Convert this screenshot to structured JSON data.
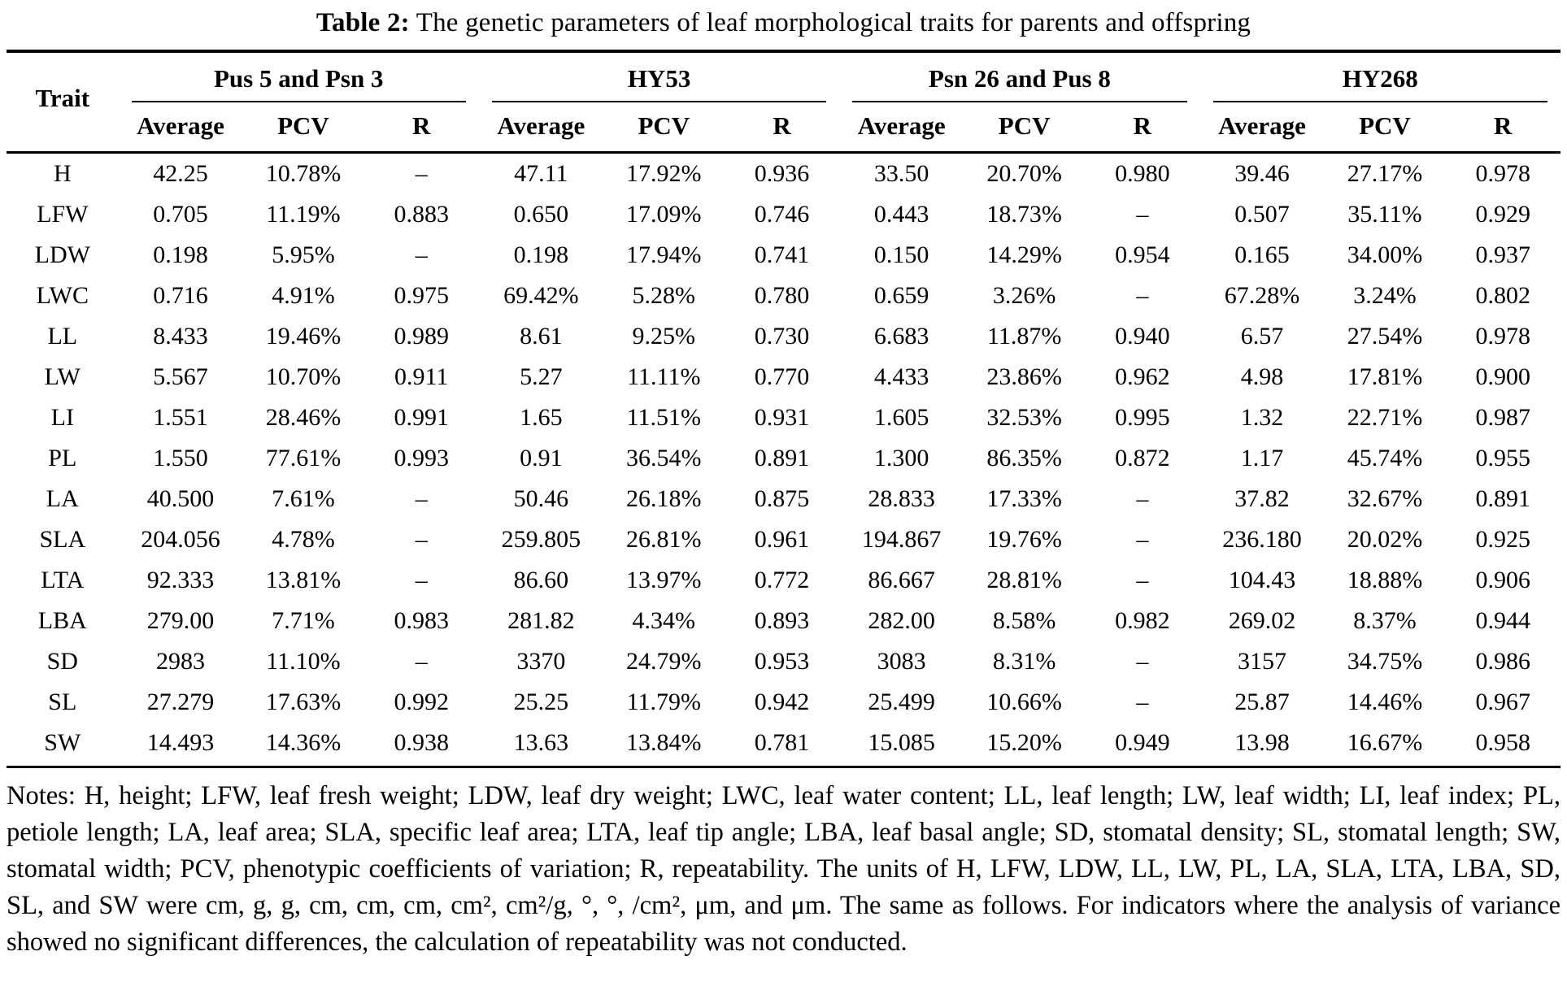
{
  "title": {
    "label": "Table 2:",
    "text": "The genetic parameters of leaf morphological traits for parents and offspring"
  },
  "table": {
    "trait_header": "Trait",
    "groups": [
      "Pus 5 and Psn 3",
      "HY53",
      "Psn 26 and Pus 8",
      "HY268"
    ],
    "sub_headers": [
      "Average",
      "PCV",
      "R"
    ],
    "rows": [
      {
        "trait": "H",
        "cells": [
          "42.25",
          "10.78%",
          "–",
          "47.11",
          "17.92%",
          "0.936",
          "33.50",
          "20.70%",
          "0.980",
          "39.46",
          "27.17%",
          "0.978"
        ]
      },
      {
        "trait": "LFW",
        "cells": [
          "0.705",
          "11.19%",
          "0.883",
          "0.650",
          "17.09%",
          "0.746",
          "0.443",
          "18.73%",
          "–",
          "0.507",
          "35.11%",
          "0.929"
        ]
      },
      {
        "trait": "LDW",
        "cells": [
          "0.198",
          "5.95%",
          "–",
          "0.198",
          "17.94%",
          "0.741",
          "0.150",
          "14.29%",
          "0.954",
          "0.165",
          "34.00%",
          "0.937"
        ]
      },
      {
        "trait": "LWC",
        "cells": [
          "0.716",
          "4.91%",
          "0.975",
          "69.42%",
          "5.28%",
          "0.780",
          "0.659",
          "3.26%",
          "–",
          "67.28%",
          "3.24%",
          "0.802"
        ]
      },
      {
        "trait": "LL",
        "cells": [
          "8.433",
          "19.46%",
          "0.989",
          "8.61",
          "9.25%",
          "0.730",
          "6.683",
          "11.87%",
          "0.940",
          "6.57",
          "27.54%",
          "0.978"
        ]
      },
      {
        "trait": "LW",
        "cells": [
          "5.567",
          "10.70%",
          "0.911",
          "5.27",
          "11.11%",
          "0.770",
          "4.433",
          "23.86%",
          "0.962",
          "4.98",
          "17.81%",
          "0.900"
        ]
      },
      {
        "trait": "LI",
        "cells": [
          "1.551",
          "28.46%",
          "0.991",
          "1.65",
          "11.51%",
          "0.931",
          "1.605",
          "32.53%",
          "0.995",
          "1.32",
          "22.71%",
          "0.987"
        ]
      },
      {
        "trait": "PL",
        "cells": [
          "1.550",
          "77.61%",
          "0.993",
          "0.91",
          "36.54%",
          "0.891",
          "1.300",
          "86.35%",
          "0.872",
          "1.17",
          "45.74%",
          "0.955"
        ]
      },
      {
        "trait": "LA",
        "cells": [
          "40.500",
          "7.61%",
          "–",
          "50.46",
          "26.18%",
          "0.875",
          "28.833",
          "17.33%",
          "–",
          "37.82",
          "32.67%",
          "0.891"
        ]
      },
      {
        "trait": "SLA",
        "cells": [
          "204.056",
          "4.78%",
          "–",
          "259.805",
          "26.81%",
          "0.961",
          "194.867",
          "19.76%",
          "–",
          "236.180",
          "20.02%",
          "0.925"
        ]
      },
      {
        "trait": "LTA",
        "cells": [
          "92.333",
          "13.81%",
          "–",
          "86.60",
          "13.97%",
          "0.772",
          "86.667",
          "28.81%",
          "–",
          "104.43",
          "18.88%",
          "0.906"
        ]
      },
      {
        "trait": "LBA",
        "cells": [
          "279.00",
          "7.71%",
          "0.983",
          "281.82",
          "4.34%",
          "0.893",
          "282.00",
          "8.58%",
          "0.982",
          "269.02",
          "8.37%",
          "0.944"
        ]
      },
      {
        "trait": "SD",
        "cells": [
          "2983",
          "11.10%",
          "–",
          "3370",
          "24.79%",
          "0.953",
          "3083",
          "8.31%",
          "–",
          "3157",
          "34.75%",
          "0.986"
        ]
      },
      {
        "trait": "SL",
        "cells": [
          "27.279",
          "17.63%",
          "0.992",
          "25.25",
          "11.79%",
          "0.942",
          "25.499",
          "10.66%",
          "–",
          "25.87",
          "14.46%",
          "0.967"
        ]
      },
      {
        "trait": "SW",
        "cells": [
          "14.493",
          "14.36%",
          "0.938",
          "13.63",
          "13.84%",
          "0.781",
          "15.085",
          "15.20%",
          "0.949",
          "13.98",
          "16.67%",
          "0.958"
        ]
      }
    ]
  },
  "notes": {
    "text": "Notes: H, height; LFW, leaf fresh weight; LDW, leaf dry weight; LWC, leaf water content; LL, leaf length; LW, leaf width; LI, leaf index; PL, petiole length; LA, leaf area; SLA, specific leaf area; LTA, leaf tip angle; LBA, leaf basal angle; SD, stomatal density; SL, stomatal length; SW, stomatal width; PCV, phenotypic coefficients of variation; R, repeatability. The units of H, LFW, LDW, LL, LW, PL, LA, SLA, LTA, LBA, SD, SL, and SW were cm, g, g, cm, cm, cm, cm², cm²/g, °, °, /cm², μm, and μm. The same as follows. For indicators where the analysis of variance showed no significant differences, the calculation of repeatability was not conducted."
  }
}
